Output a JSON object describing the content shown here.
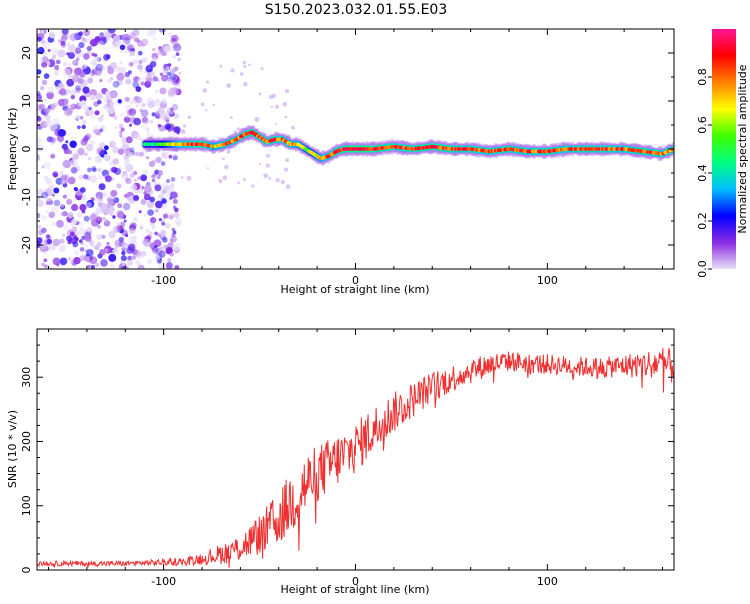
{
  "title": "S150.2023.032.01.55.E03",
  "chart_data": [
    {
      "type": "heatmap",
      "xlabel": "Height of straight line (km)",
      "ylabel": "Frequency (Hz)",
      "xlim": [
        -166,
        166
      ],
      "ylim": [
        -25,
        25
      ],
      "x_ticks": [
        -100,
        0,
        100
      ],
      "y_ticks": [
        -20,
        -10,
        0,
        10,
        20
      ],
      "colorbar": {
        "label": "Normalized spectral amplitude",
        "range": [
          0,
          1
        ],
        "ticks": [
          0.0,
          0.2,
          0.4,
          0.6,
          0.8
        ],
        "colors": [
          "#e8e0f8",
          "#8a2be2",
          "#0000ff",
          "#00bfff",
          "#00ff80",
          "#40ff00",
          "#ffff00",
          "#ff8000",
          "#ff0000",
          "#ff1493"
        ]
      },
      "noise_region_x": [
        -166,
        -92
      ],
      "ridge": {
        "x": [
          -110,
          -104,
          -98,
          -92,
          -86,
          -80,
          -74,
          -68,
          -62,
          -58,
          -54,
          -50,
          -46,
          -42,
          -38,
          -34,
          -30,
          -26,
          -22,
          -18,
          -14,
          -10,
          -6,
          -2,
          2,
          10,
          20,
          30,
          40,
          50,
          60,
          70,
          80,
          90,
          100,
          110,
          120,
          130,
          140,
          150,
          160,
          166
        ],
        "y": [
          1,
          1,
          1,
          1,
          1,
          1,
          0.5,
          1,
          2,
          3,
          3.5,
          2.5,
          1.5,
          2,
          2,
          1,
          1,
          0,
          -1,
          -2,
          -1.5,
          -0.5,
          0,
          0,
          0,
          0,
          0.5,
          0,
          0.5,
          0,
          0,
          -0.5,
          0,
          -0.5,
          -0.5,
          0,
          0,
          0,
          0,
          -0.5,
          -1,
          0
        ],
        "amplitude": [
          0.4,
          0.4,
          0.55,
          0.75,
          0.85,
          0.9,
          0.7,
          0.75,
          0.8,
          0.85,
          0.9,
          0.85,
          0.8,
          0.85,
          0.8,
          0.75,
          0.7,
          0.6,
          0.6,
          0.7,
          0.8,
          0.85,
          0.9,
          0.95,
          0.95,
          0.9,
          0.85,
          0.85,
          0.9,
          0.85,
          0.85,
          0.8,
          0.85,
          0.8,
          0.85,
          0.8,
          0.85,
          0.85,
          0.8,
          0.85,
          0.8,
          0.8
        ]
      }
    },
    {
      "type": "line",
      "xlabel": "Height of straight line (km)",
      "ylabel": "SNR (10 * v/v)",
      "xlim": [
        -166,
        166
      ],
      "ylim": [
        0,
        375
      ],
      "x_ticks": [
        -100,
        0,
        100
      ],
      "y_ticks": [
        0,
        100,
        200,
        300
      ],
      "series_color": "#ee3030",
      "x": [
        -166,
        -140,
        -120,
        -100,
        -90,
        -80,
        -70,
        -60,
        -50,
        -40,
        -30,
        -20,
        -10,
        0,
        10,
        20,
        30,
        40,
        50,
        60,
        70,
        80,
        90,
        100,
        110,
        120,
        130,
        140,
        150,
        160,
        166
      ],
      "y": [
        10,
        10,
        10,
        12,
        13,
        18,
        25,
        35,
        55,
        80,
        120,
        150,
        170,
        190,
        220,
        245,
        265,
        285,
        298,
        310,
        320,
        325,
        322,
        320,
        318,
        316,
        315,
        318,
        320,
        322,
        315
      ],
      "noise_amplitude": [
        4,
        4,
        4,
        5,
        6,
        10,
        16,
        22,
        32,
        42,
        55,
        45,
        42,
        40,
        38,
        32,
        28,
        24,
        22,
        20,
        18,
        16,
        16,
        16,
        16,
        16,
        16,
        18,
        22,
        26,
        28
      ]
    }
  ]
}
